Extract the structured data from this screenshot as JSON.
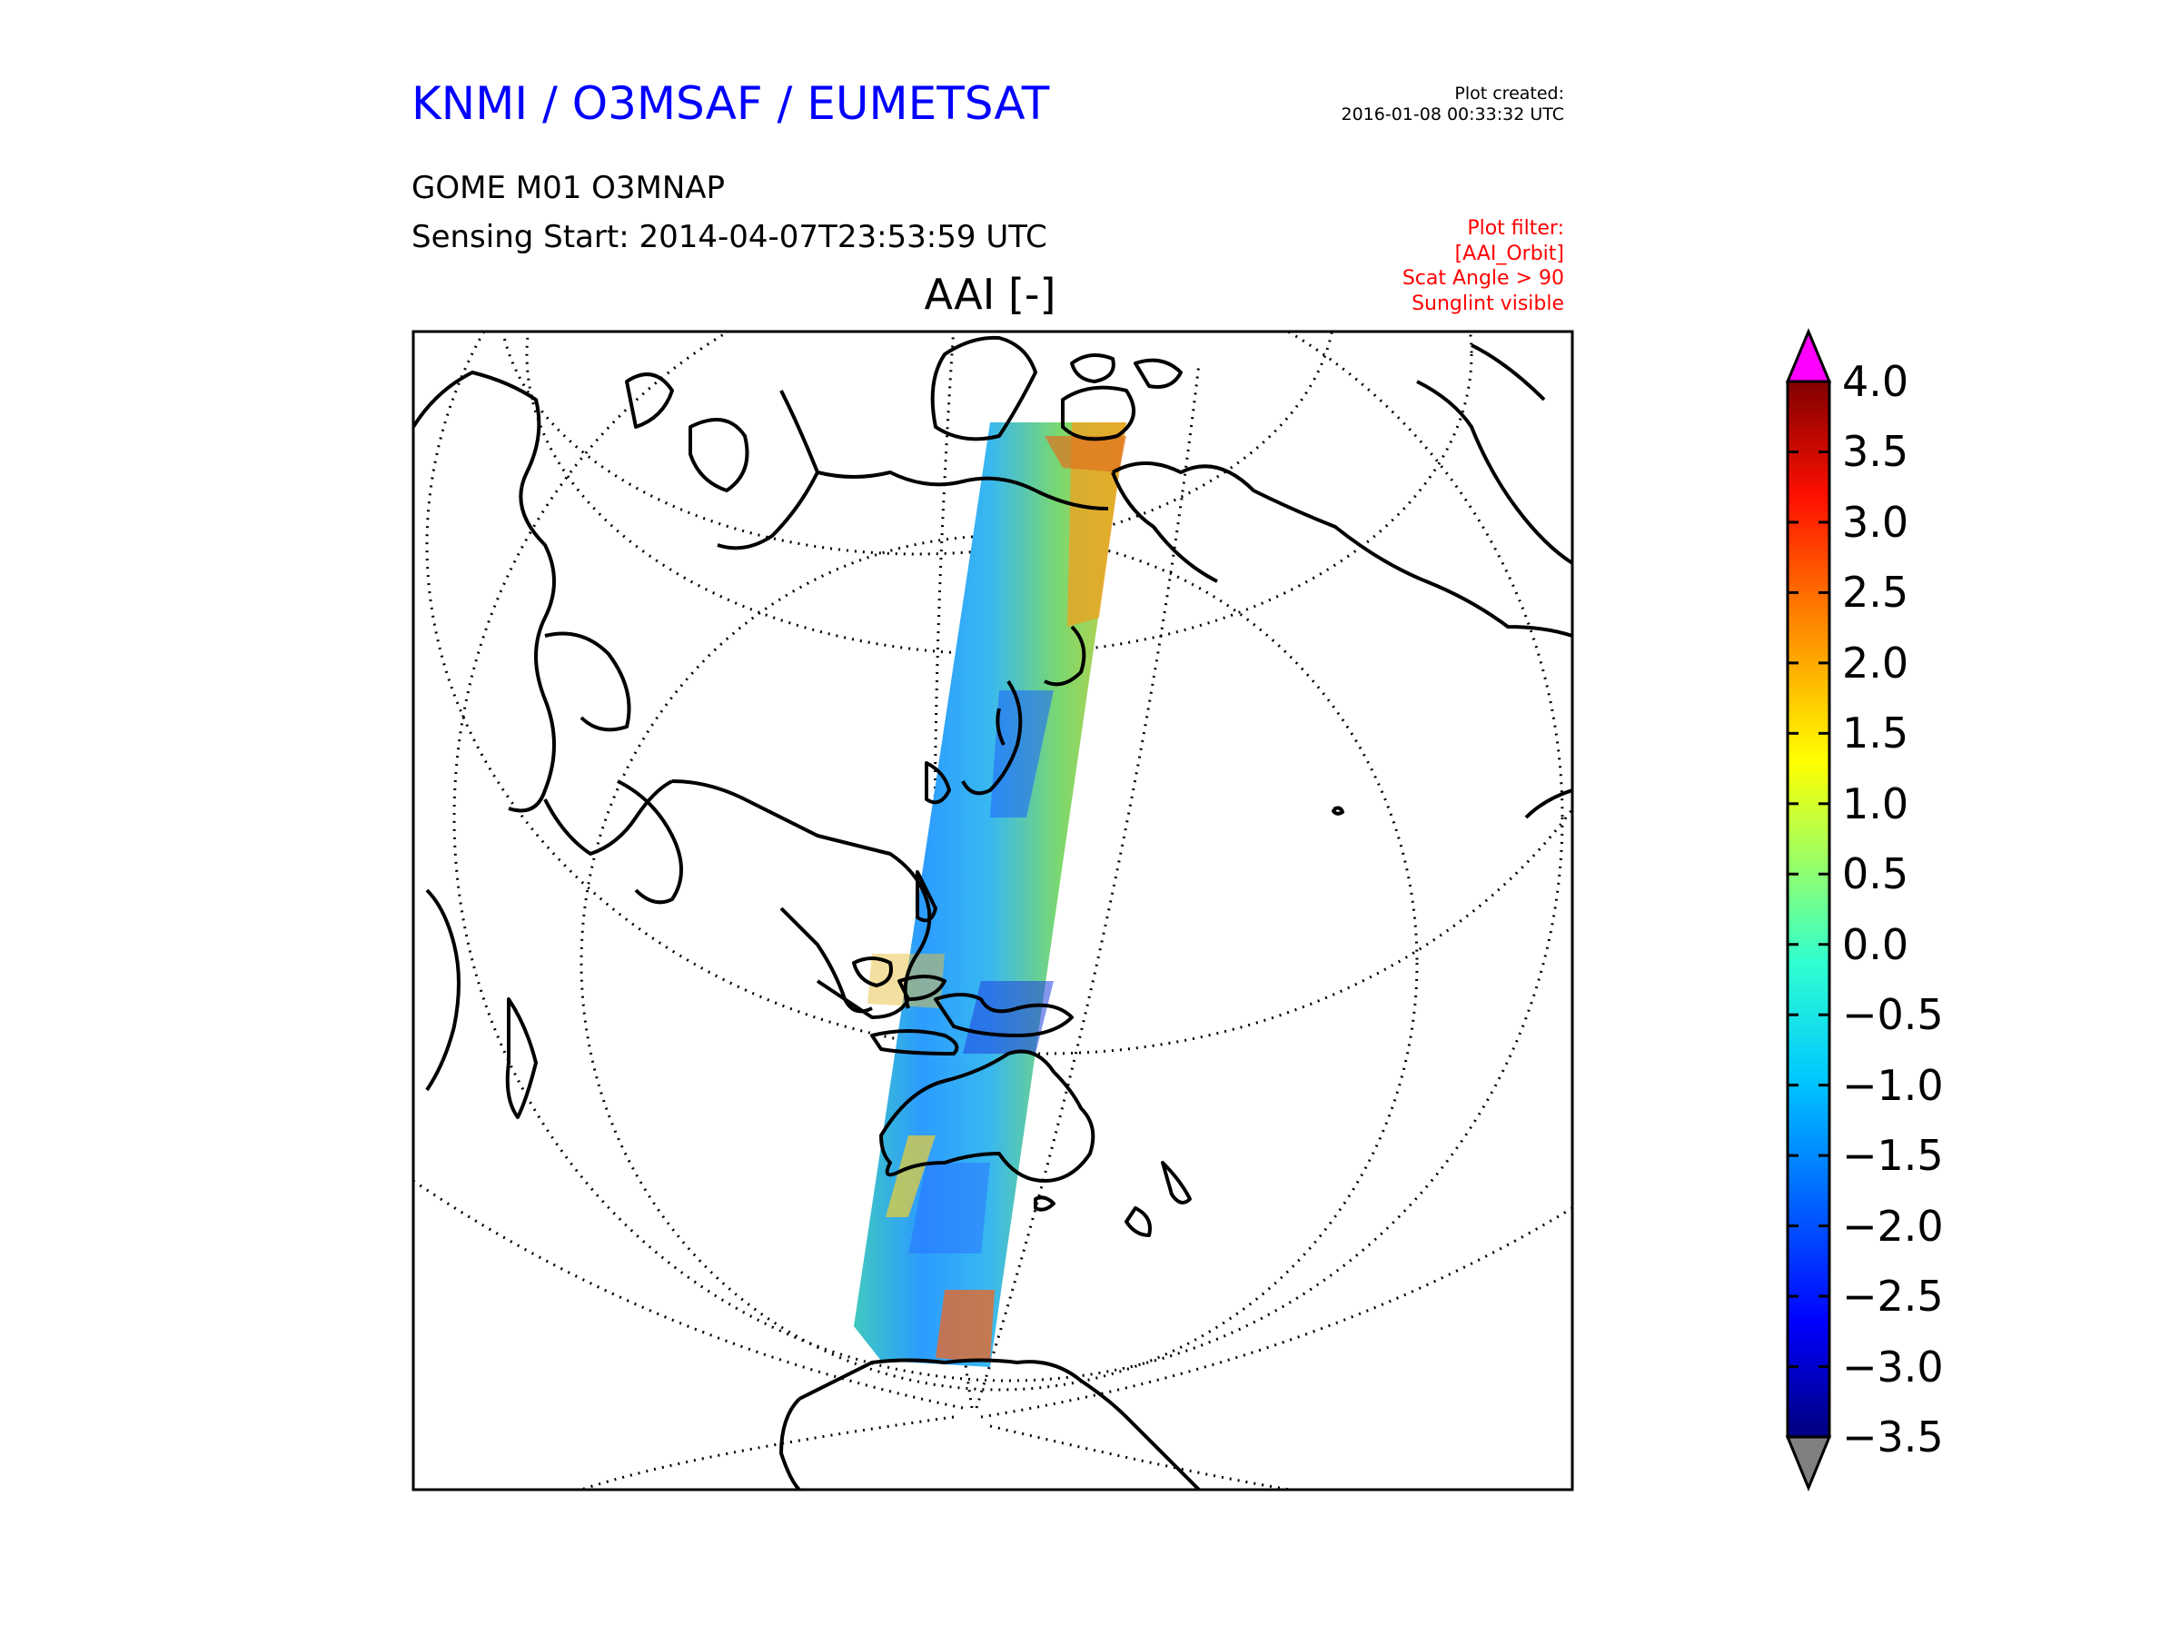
{
  "header": {
    "org_line": "KNMI / O3MSAF / EUMETSAT",
    "plot_created_label": "Plot created:",
    "plot_created_time": "2016-01-08 00:33:32 UTC",
    "product_line": "GOME M01 O3MNAP",
    "sensing_start": "Sensing Start: 2014-04-07T23:53:59 UTC",
    "plot_filter": [
      "Plot filter:",
      "[AAI_Orbit]",
      "Scat Angle > 90",
      "Sunglint visible"
    ]
  },
  "map": {
    "title": "AAI [-]",
    "projection": "orthographic",
    "features": [
      "coastlines",
      "latitude-circles",
      "meridians",
      "orbit-swath"
    ]
  },
  "colorbar": {
    "ticks": [
      "4.0",
      "3.5",
      "3.0",
      "2.5",
      "2.0",
      "1.5",
      "1.0",
      "0.5",
      "0.0",
      "−0.5",
      "−1.0",
      "−1.5",
      "−2.0",
      "−2.5",
      "−3.0",
      "−3.5"
    ],
    "vmin": -3.5,
    "vmax": 4.0,
    "over_color": "#ff00ff",
    "under_color": "#808080",
    "colormap": "jet"
  },
  "colors": {
    "org_title": "#0000ff",
    "filter_text": "#ff0000"
  }
}
